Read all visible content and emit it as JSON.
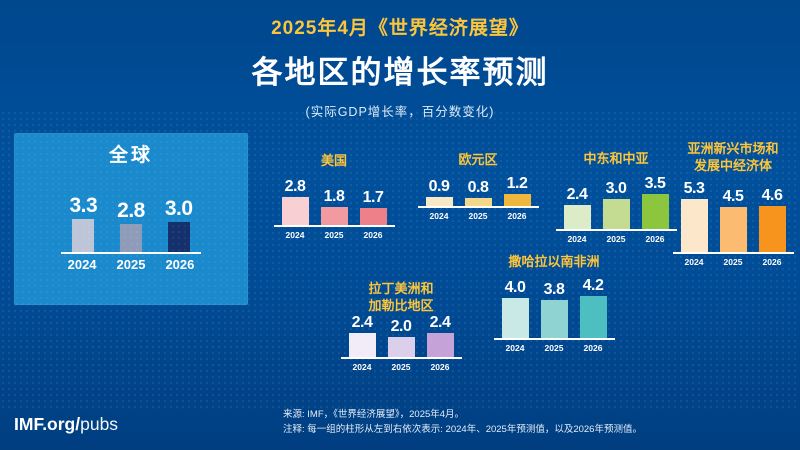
{
  "header": {
    "kicker": "2025年4月《世界经济展望》",
    "title": "各地区的增长率预测",
    "subtitle": "(实际GDP增长率，百分数变化)"
  },
  "footer": {
    "source": "来源: IMF，《世界经济展望》，2025年4月。",
    "note": "注释: 每一组的柱形从左到右依次表示: 2024年、2025年预测值，以及2026年预测值。",
    "logo_bold": "IMF.org/",
    "logo_light": "pubs"
  },
  "colors": {
    "background": "#004a94",
    "accent_yellow": "#fdc53a",
    "global_panel_blue": "#1a8acd",
    "baseline_white": "#ffffff"
  },
  "chart_data": [
    {
      "id": "global",
      "type": "bar",
      "title": "全球",
      "title_lines": [
        "全球"
      ],
      "categories": [
        "2024",
        "2025",
        "2026"
      ],
      "values": [
        3.3,
        2.8,
        3.0
      ],
      "bar_colors": [
        "#bdc6d8",
        "#8e9cba",
        "#14306d"
      ],
      "ylim": [
        0,
        6
      ],
      "unit": "percent"
    },
    {
      "id": "usa",
      "type": "bar",
      "title": "美国",
      "title_lines": [
        "美国"
      ],
      "categories": [
        "2024",
        "2025",
        "2026"
      ],
      "values": [
        2.8,
        1.8,
        1.7
      ],
      "bar_colors": [
        "#f8cfd3",
        "#f19ba1",
        "#ee8089"
      ],
      "ylim": [
        0,
        6
      ],
      "unit": "percent"
    },
    {
      "id": "euro-area",
      "type": "bar",
      "title": "欧元区",
      "title_lines": [
        "欧元区"
      ],
      "categories": [
        "2024",
        "2025",
        "2026"
      ],
      "values": [
        0.9,
        0.8,
        1.2
      ],
      "bar_colors": [
        "#f6e9c8",
        "#f5d78b",
        "#efb73d"
      ],
      "ylim": [
        0,
        6
      ],
      "unit": "percent"
    },
    {
      "id": "middle-east-central-asia",
      "type": "bar",
      "title": "中东和中亚",
      "title_lines": [
        "中东和中亚"
      ],
      "categories": [
        "2024",
        "2025",
        "2026"
      ],
      "values": [
        2.4,
        3.0,
        3.5
      ],
      "bar_colors": [
        "#dcebc8",
        "#c3dc92",
        "#8cc63f"
      ],
      "ylim": [
        0,
        6
      ],
      "unit": "percent"
    },
    {
      "id": "emerging-developing-asia",
      "type": "bar",
      "title": "亚洲新兴市场和发展中经济体",
      "title_lines": [
        "亚洲新兴市场和",
        "发展中经济体"
      ],
      "categories": [
        "2024",
        "2025",
        "2026"
      ],
      "values": [
        5.3,
        4.5,
        4.6
      ],
      "bar_colors": [
        "#fde7cb",
        "#fbbc72",
        "#f7941e"
      ],
      "ylim": [
        0,
        6
      ],
      "unit": "percent"
    },
    {
      "id": "latin-america-caribbean",
      "type": "bar",
      "title": "拉丁美洲和加勒比地区",
      "title_lines": [
        "拉丁美洲和",
        "加勒比地区"
      ],
      "categories": [
        "2024",
        "2025",
        "2026"
      ],
      "values": [
        2.4,
        2.0,
        2.4
      ],
      "bar_colors": [
        "#f1ecf7",
        "#dccfe9",
        "#c5a2d8"
      ],
      "ylim": [
        0,
        6
      ],
      "unit": "percent"
    },
    {
      "id": "sub-saharan-africa",
      "type": "bar",
      "title": "撒哈拉以南非洲",
      "title_lines": [
        "撒哈拉以南非洲"
      ],
      "categories": [
        "2024",
        "2025",
        "2026"
      ],
      "values": [
        4.0,
        3.8,
        4.2
      ],
      "bar_colors": [
        "#c9e9e6",
        "#8fd4d2",
        "#4dbfc0"
      ],
      "ylim": [
        0,
        6
      ],
      "unit": "percent"
    }
  ]
}
